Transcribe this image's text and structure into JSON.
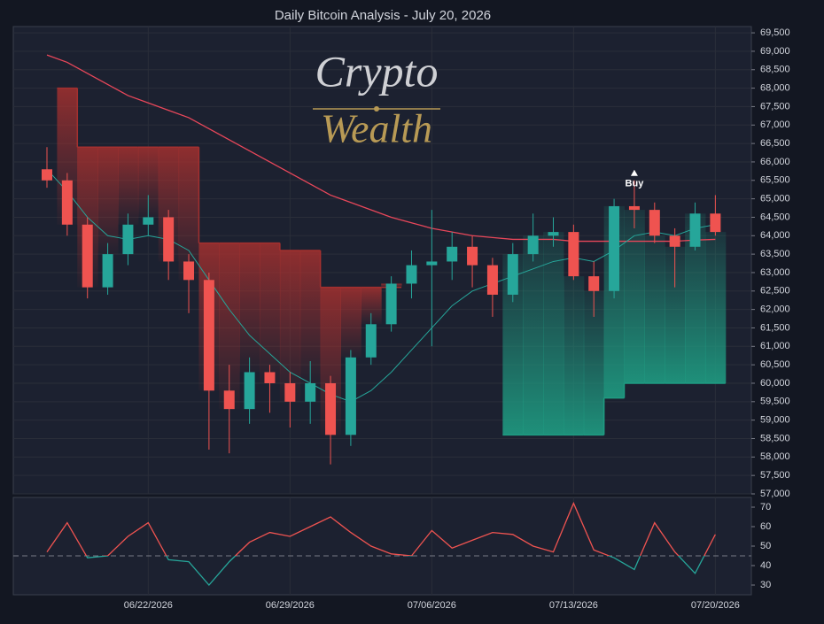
{
  "chart_data": [
    {
      "type": "candlestick",
      "title": "Daily Bitcoin Analysis - July 20, 2026",
      "watermark": {
        "top": "Crypto",
        "bottom": "Wealth"
      },
      "x": [
        "06/17/2026",
        "06/18/2026",
        "06/19/2026",
        "06/20/2026",
        "06/21/2026",
        "06/22/2026",
        "06/23/2026",
        "06/24/2026",
        "06/25/2026",
        "06/26/2026",
        "06/27/2026",
        "06/28/2026",
        "06/29/2026",
        "06/30/2026",
        "07/01/2026",
        "07/02/2026",
        "07/03/2026",
        "07/04/2026",
        "07/05/2026",
        "07/06/2026",
        "07/07/2026",
        "07/08/2026",
        "07/09/2026",
        "07/10/2026",
        "07/11/2026",
        "07/12/2026",
        "07/13/2026",
        "07/14/2026",
        "07/15/2026",
        "07/16/2026",
        "07/17/2026",
        "07/18/2026",
        "07/19/2026",
        "07/20/2026"
      ],
      "open": [
        65800,
        65500,
        64300,
        62600,
        63500,
        64300,
        64500,
        63300,
        62800,
        59800,
        59300,
        60300,
        60000,
        59500,
        60000,
        58600,
        60700,
        61600,
        62700,
        63200,
        63300,
        63700,
        63200,
        62400,
        63500,
        64000,
        64100,
        62900,
        62500,
        64800,
        64700,
        64000,
        63700,
        64600
      ],
      "high": [
        66400,
        65700,
        64500,
        63800,
        64600,
        65100,
        64700,
        63500,
        63000,
        60500,
        60700,
        60500,
        60300,
        60600,
        60200,
        60900,
        61900,
        62900,
        63600,
        64700,
        64100,
        64000,
        63400,
        63800,
        64600,
        64500,
        64300,
        63300,
        65000,
        65500,
        64900,
        64200,
        64900,
        65100
      ],
      "low": [
        65300,
        64000,
        62300,
        62400,
        63200,
        64000,
        62800,
        61900,
        58200,
        58100,
        58900,
        59200,
        58800,
        58900,
        57800,
        58300,
        60500,
        61400,
        62300,
        61000,
        62800,
        62600,
        61800,
        62200,
        63300,
        63700,
        62800,
        61800,
        62300,
        64200,
        63800,
        62600,
        63600,
        64000
      ],
      "close": [
        65500,
        64300,
        62600,
        63500,
        64300,
        64500,
        63300,
        62800,
        59800,
        59300,
        60300,
        60000,
        59500,
        60000,
        58600,
        60700,
        61600,
        62700,
        63200,
        63300,
        63700,
        63200,
        62400,
        63500,
        64000,
        64100,
        62900,
        62500,
        64800,
        64700,
        64000,
        63700,
        64600,
        64100
      ],
      "up_color": "#26a69a",
      "down_color": "#ef5350",
      "ma_long": {
        "color": "#e8475a",
        "values": [
          68900,
          68700,
          68400,
          68100,
          67800,
          67600,
          67400,
          67200,
          66900,
          66600,
          66300,
          66000,
          65700,
          65400,
          65100,
          64900,
          64700,
          64500,
          64350,
          64200,
          64100,
          64000,
          63950,
          63900,
          63900,
          63900,
          63850,
          63850,
          63850,
          63850,
          63850,
          63850,
          63880,
          63900
        ]
      },
      "ma_short": {
        "color": "#26a69a",
        "values": [
          65800,
          65200,
          64500,
          64000,
          63900,
          64000,
          63900,
          63600,
          62800,
          62000,
          61300,
          60800,
          60300,
          60000,
          59700,
          59500,
          59800,
          60300,
          60900,
          61500,
          62100,
          62500,
          62700,
          62900,
          63100,
          63300,
          63400,
          63300,
          63600,
          64000,
          64100,
          64000,
          64200,
          64300
        ]
      },
      "bands": [
        {
          "color": "#a3302f",
          "values": [
            null,
            68000,
            66400,
            66400,
            66400,
            66400,
            66400,
            66400,
            63800,
            63800,
            63800,
            63800,
            63600,
            63600,
            62600,
            62600,
            62600,
            62600,
            null,
            null,
            null,
            null,
            null,
            null,
            null,
            null,
            null,
            null,
            null,
            null,
            null,
            null,
            null,
            null
          ]
        },
        {
          "color": "#1f9c82",
          "values": [
            null,
            null,
            null,
            null,
            null,
            null,
            null,
            null,
            null,
            null,
            null,
            null,
            null,
            null,
            null,
            null,
            null,
            null,
            null,
            null,
            null,
            null,
            null,
            58600,
            58600,
            58600,
            58600,
            58600,
            59600,
            60000,
            60000,
            60000,
            60000,
            60000
          ]
        }
      ],
      "annotations": [
        {
          "text": "Buy",
          "x": "07/16/2026"
        }
      ],
      "ylim": [
        57000,
        69670
      ],
      "yticks": [
        {
          "value": 57000,
          "label": "57,000"
        },
        {
          "value": 57500,
          "label": "57,500"
        },
        {
          "value": 58000,
          "label": "58,000"
        },
        {
          "value": 58500,
          "label": "58,500"
        },
        {
          "value": 59000,
          "label": "59,000"
        },
        {
          "value": 59500,
          "label": "59,500"
        },
        {
          "value": 60000,
          "label": "60,000"
        },
        {
          "value": 60500,
          "label": "60,500"
        },
        {
          "value": 61000,
          "label": "61,000"
        },
        {
          "value": 61500,
          "label": "61,500"
        },
        {
          "value": 62000,
          "label": "62,000"
        },
        {
          "value": 62500,
          "label": "62,500"
        },
        {
          "value": 63000,
          "label": "63,000"
        },
        {
          "value": 63500,
          "label": "63,500"
        },
        {
          "value": 64000,
          "label": "64,000"
        },
        {
          "value": 64500,
          "label": "64,500"
        },
        {
          "value": 65000,
          "label": "65,000"
        },
        {
          "value": 65500,
          "label": "65,500"
        },
        {
          "value": 66000,
          "label": "66,000"
        },
        {
          "value": 66500,
          "label": "66,500"
        },
        {
          "value": 67000,
          "label": "67,000"
        },
        {
          "value": 67500,
          "label": "67,500"
        },
        {
          "value": 68000,
          "label": "68,000"
        },
        {
          "value": 68500,
          "label": "68,500"
        },
        {
          "value": 69000,
          "label": "69,000"
        },
        {
          "value": 69500,
          "label": "69,500"
        }
      ],
      "xticks": [
        "06/22/2026",
        "06/29/2026",
        "07/06/2026",
        "07/13/2026",
        "07/20/2026"
      ],
      "grid": true
    },
    {
      "type": "line",
      "values": [
        47,
        62,
        44,
        45,
        55,
        62,
        43,
        42,
        30,
        42,
        52,
        57,
        55,
        60,
        65,
        57,
        50,
        46,
        45,
        58,
        49,
        53,
        57,
        56,
        50,
        47,
        72,
        48,
        44,
        38,
        62,
        47,
        36,
        56
      ],
      "color_above": "#ef5350",
      "color_below": "#26a69a",
      "threshold": 45,
      "ylim": [
        25,
        75
      ],
      "yticks": [
        30,
        40,
        50,
        60,
        70
      ],
      "grid": true
    }
  ]
}
